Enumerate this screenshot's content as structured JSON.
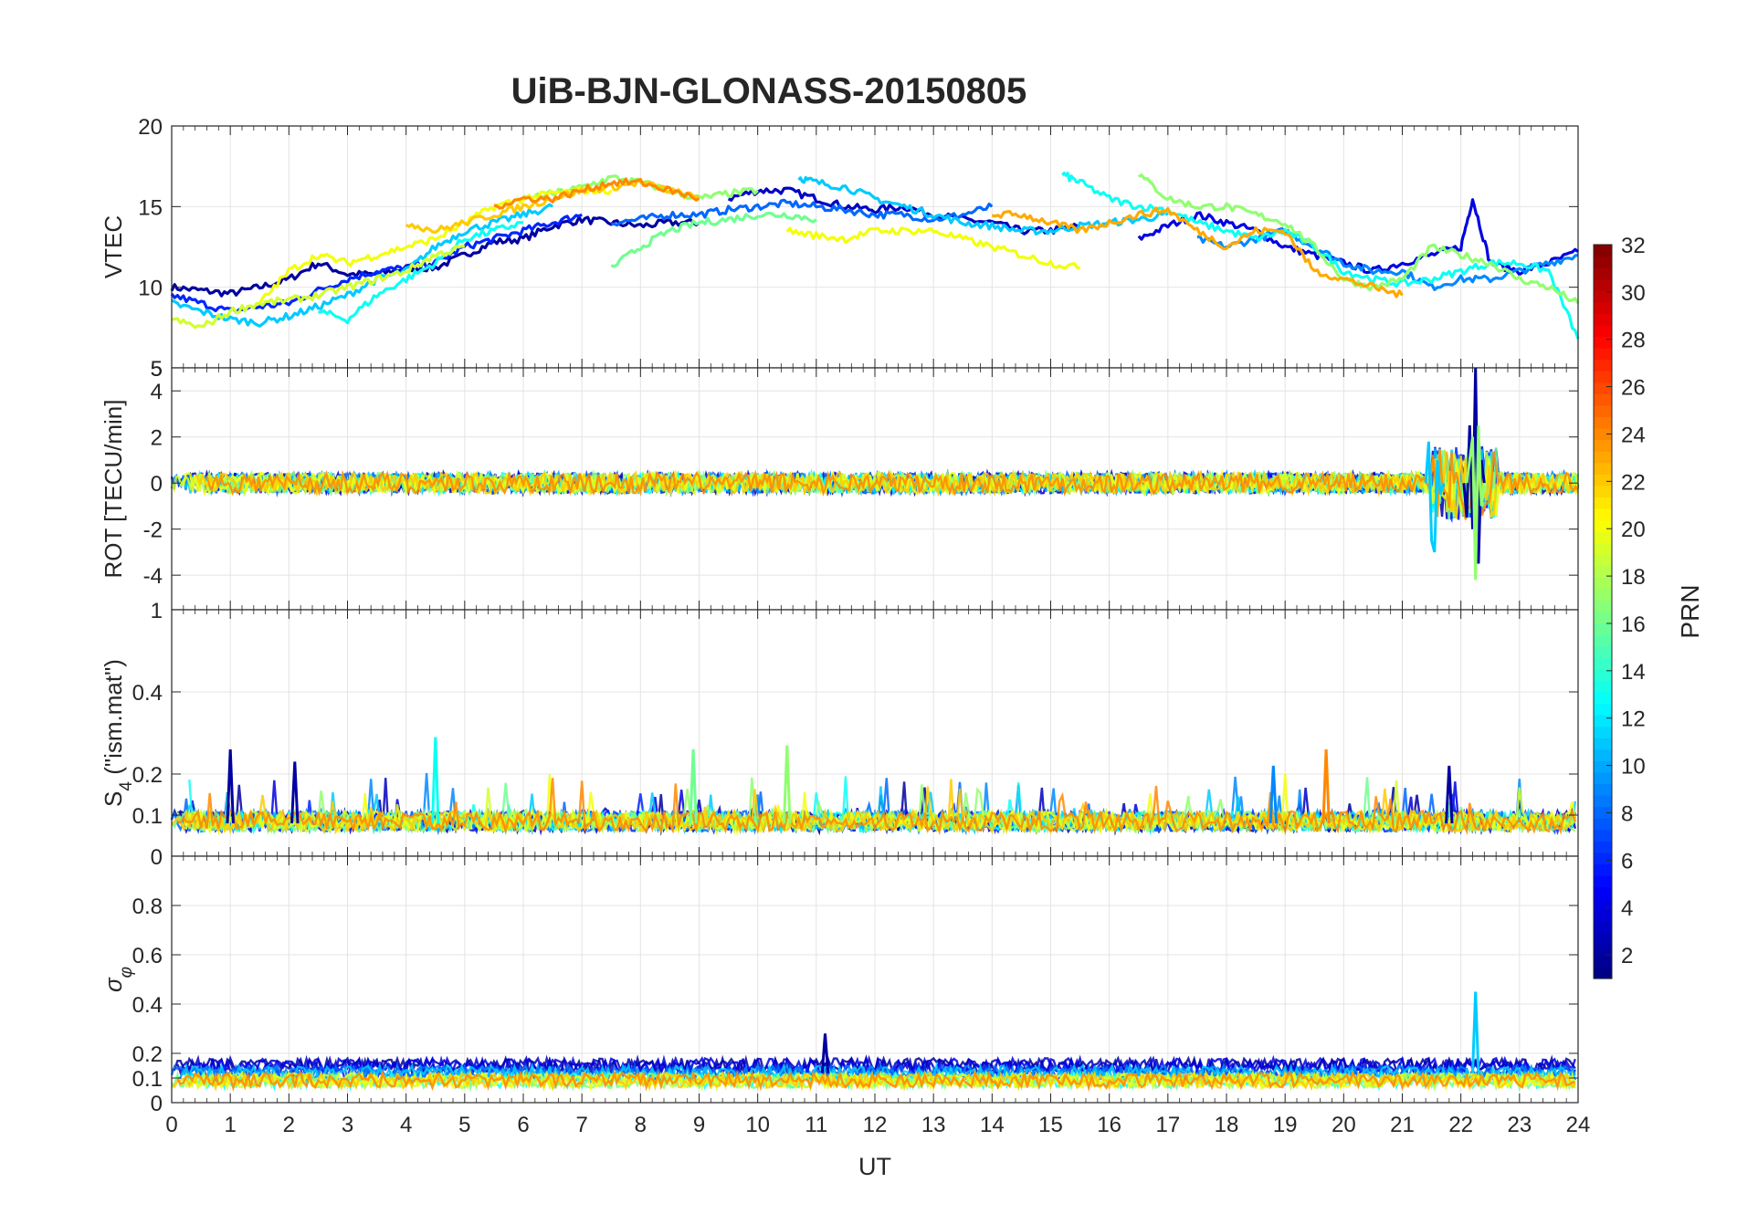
{
  "chart_data": {
    "type": "line",
    "title": "UiB-BJN-GLONASS-20150805",
    "xlabel": "UT",
    "xlim": [
      0,
      24
    ],
    "xticks": [
      "0",
      "1",
      "2",
      "3",
      "4",
      "5",
      "6",
      "7",
      "8",
      "9",
      "10",
      "11",
      "12",
      "13",
      "14",
      "15",
      "16",
      "17",
      "18",
      "19",
      "20",
      "21",
      "22",
      "23",
      "24"
    ],
    "grid": true,
    "panels": [
      {
        "id": "vtec",
        "ylabel": "VTEC",
        "ylim": [
          5,
          20
        ],
        "yticks": [
          5,
          10,
          15,
          20
        ],
        "ytick_labels": [
          "5",
          "10",
          "15",
          "20"
        ],
        "series": [
          {
            "name": "PRN 2",
            "prn": 2,
            "x": [
              0,
              0.5,
              1,
              1.5,
              2,
              2.5,
              3,
              3.5,
              4,
              4.5,
              5,
              5.5,
              6,
              6.5,
              7,
              7.5,
              8,
              8.5,
              9
            ],
            "y": [
              10,
              9.8,
              9.6,
              10,
              10.5,
              11.5,
              10.8,
              10.8,
              11.2,
              11.2,
              12,
              12.8,
              13,
              13.8,
              14.2,
              14,
              13.8,
              14,
              14
            ]
          },
          {
            "name": "PRN 3",
            "prn": 3,
            "x": [
              9.5,
              10,
              10.5,
              11,
              11.5,
              12,
              12.5,
              13,
              13.5,
              14,
              14.5,
              15,
              15.5
            ],
            "y": [
              15.5,
              16,
              16,
              15.5,
              15,
              14.8,
              15,
              14.5,
              14.2,
              14,
              13.5,
              13.5,
              13.8
            ]
          },
          {
            "name": "PRN 4",
            "prn": 4,
            "x": [
              16.5,
              17,
              17.5,
              18,
              18.5,
              19,
              19.5,
              20,
              20.5,
              21,
              21.5,
              22,
              22.2,
              22.5,
              23,
              23.5,
              24
            ],
            "y": [
              13,
              13.8,
              14.5,
              14,
              13.5,
              12.5,
              12,
              11.5,
              11,
              11.5,
              12,
              12.5,
              15.5,
              11.5,
              11,
              11.5,
              12.2
            ]
          },
          {
            "name": "PRN 6",
            "prn": 6,
            "x": [
              0,
              0.5,
              1,
              1.5,
              2,
              2.5,
              3,
              3.5,
              4,
              4.5,
              5,
              5.5,
              6,
              6.5,
              7
            ],
            "y": [
              9.5,
              9,
              8.5,
              8.8,
              9,
              9.8,
              10.5,
              11,
              11.2,
              11.5,
              12.5,
              13,
              13.5,
              14,
              14.5
            ]
          },
          {
            "name": "PRN 8",
            "prn": 8,
            "x": [
              7.5,
              8,
              8.5,
              9,
              9.5,
              10,
              10.5,
              11,
              11.5,
              12,
              12.5,
              13,
              13.5,
              14
            ],
            "y": [
              14,
              14.2,
              14.5,
              14.5,
              14.8,
              15,
              15.2,
              15,
              14.8,
              14.5,
              14.5,
              14.2,
              14.5,
              15
            ]
          },
          {
            "name": "PRN 9",
            "prn": 9,
            "x": [
              17.5,
              18,
              18.5,
              19,
              19.5,
              20,
              20.5,
              21,
              21.5,
              22,
              22.5,
              23,
              23.5,
              24
            ],
            "y": [
              13,
              12.5,
              13,
              13.5,
              12.5,
              11.5,
              11,
              11,
              10,
              10.5,
              10.5,
              11,
              11.5,
              12
            ]
          },
          {
            "name": "PRN 11",
            "prn": 11,
            "x": [
              10.7,
              11,
              11.5,
              12,
              12.5,
              13,
              13.5,
              14,
              14.5,
              15,
              15.5,
              16,
              16.5,
              17
            ],
            "y": [
              16.8,
              16.5,
              16.2,
              15.5,
              15,
              14.5,
              14,
              13.8,
              13.5,
              13.5,
              13.8,
              14,
              14.2,
              14.5
            ]
          },
          {
            "name": "PRN 11b",
            "prn": 11,
            "x": [
              0,
              0.5,
              1,
              1.5,
              2,
              2.5,
              3,
              3.5,
              4,
              4.5,
              5,
              5.5,
              6,
              6.5
            ],
            "y": [
              9,
              8.5,
              8,
              7.8,
              8.2,
              8.8,
              9.5,
              10.5,
              11,
              12.5,
              13.5,
              14,
              14.5,
              15
            ]
          },
          {
            "name": "PRN 13",
            "prn": 13,
            "x": [
              2.5,
              3,
              3.5,
              4,
              4.5,
              5,
              5.5,
              6
            ],
            "y": [
              8.5,
              8,
              9.5,
              10.5,
              11.5,
              13,
              13.5,
              14
            ]
          },
          {
            "name": "PRN 13b",
            "prn": 13,
            "x": [
              15.2,
              15.5,
              16,
              16.5,
              17,
              17.5,
              18,
              18.5,
              19,
              19.5,
              20,
              20.5,
              21,
              21.5,
              22,
              22.5,
              23,
              23.5,
              24
            ],
            "y": [
              17,
              16.5,
              15.5,
              15,
              14.8,
              14,
              13.5,
              13,
              13.5,
              12.5,
              11,
              10.5,
              10.2,
              10.5,
              11,
              11.5,
              11.5,
              11,
              6.8
            ]
          },
          {
            "name": "PRN 16",
            "prn": 16,
            "x": [
              7.5,
              8,
              8.5,
              9,
              9.5,
              10,
              10.5,
              11
            ],
            "y": [
              11.2,
              12.5,
              13.5,
              14,
              14.2,
              14.5,
              14.5,
              14.2
            ]
          },
          {
            "name": "PRN 17",
            "prn": 17,
            "x": [
              16.5,
              17,
              17.5,
              18,
              18.5,
              19,
              19.5,
              20,
              20.5,
              21,
              21.5,
              22,
              22.5,
              23,
              23.5,
              24
            ],
            "y": [
              17,
              15.5,
              15,
              15,
              14.5,
              14,
              12.5,
              10.5,
              10,
              10.5,
              12.5,
              12,
              11.5,
              10.5,
              10,
              9
            ]
          },
          {
            "name": "PRN 17b",
            "prn": 17,
            "x": [
              6,
              6.5,
              7,
              7.5,
              8,
              8.5,
              9,
              9.5,
              10
            ],
            "y": [
              15.5,
              15.8,
              16.2,
              16.8,
              16.5,
              16,
              15.5,
              15.8,
              16
            ]
          },
          {
            "name": "PRN 19",
            "prn": 19,
            "x": [
              0,
              0.5,
              1,
              1.5,
              2,
              2.5,
              3,
              3.5,
              4,
              4.5,
              5
            ],
            "y": [
              8,
              7.5,
              8.5,
              9,
              9.2,
              9.5,
              10,
              10.5,
              11,
              12,
              12.5
            ]
          },
          {
            "name": "PRN 20",
            "prn": 20,
            "x": [
              1.5,
              2,
              2.5,
              3,
              3.5,
              4,
              4.5,
              5,
              5.5,
              6,
              6.5,
              7,
              7.5
            ],
            "y": [
              9,
              11,
              12,
              11.5,
              12,
              12.5,
              13,
              14,
              15,
              15.5,
              15.8,
              16,
              16
            ]
          },
          {
            "name": "PRN 20b",
            "prn": 20,
            "x": [
              10.5,
              11,
              11.5,
              12,
              12.5,
              13,
              13.5,
              14,
              14.5,
              15,
              15.5
            ],
            "y": [
              13.5,
              13.2,
              13,
              13.5,
              13.5,
              13.5,
              13,
              12.5,
              12,
              11.5,
              11.2
            ]
          },
          {
            "name": "PRN 22",
            "prn": 22,
            "x": [
              4,
              4.5,
              5,
              5.5,
              6,
              6.5,
              7,
              7.5,
              8,
              8.5,
              9
            ],
            "y": [
              14,
              13.5,
              14,
              14.5,
              15,
              15.5,
              16,
              16.2,
              16.5,
              16,
              15.5
            ]
          },
          {
            "name": "PRN 23",
            "prn": 23,
            "x": [
              14,
              14.5,
              15,
              15.5,
              16,
              16.5,
              17,
              17.5,
              18,
              18.5,
              19,
              19.5,
              20,
              20.5,
              21
            ],
            "y": [
              14.5,
              14.5,
              14,
              13.5,
              14,
              14.5,
              14.8,
              13.5,
              12.5,
              13.5,
              13.5,
              11,
              10.5,
              10,
              9.5
            ]
          },
          {
            "name": "PRN 24",
            "prn": 24,
            "x": [
              5.5,
              6,
              6.5,
              7,
              7.5,
              8,
              8.5,
              9
            ],
            "y": [
              15,
              15.5,
              15.5,
              16,
              16.5,
              16.5,
              16,
              15.5
            ]
          }
        ]
      },
      {
        "id": "rot",
        "ylabel": "ROT [TECU/min]",
        "ylim": [
          -5.5,
          5
        ],
        "yticks": [
          -4,
          -2,
          0,
          2,
          4
        ],
        "ytick_labels": [
          "-4",
          "-2",
          "0",
          "2",
          "4"
        ],
        "extra_top_label": "5",
        "series": [
          {
            "name": "spike PRN 2",
            "prn": 2,
            "x": [
              22.05,
              22.1,
              22.15,
              22.2,
              22.25,
              22.3,
              22.35,
              22.4
            ],
            "y": [
              0,
              -1.5,
              2.5,
              -2,
              5,
              -3.5,
              1,
              0
            ]
          },
          {
            "name": "spike PRN 11",
            "prn": 11,
            "x": [
              21.4,
              21.45,
              21.5,
              21.55,
              21.6,
              21.65,
              21.7
            ],
            "y": [
              0,
              1.8,
              -2.5,
              -3,
              1,
              -0.5,
              0
            ]
          },
          {
            "name": "spike PRN 17",
            "prn": 17,
            "x": [
              22.1,
              22.2,
              22.25,
              22.3,
              22.35,
              22.4
            ],
            "y": [
              0,
              2,
              -4.2,
              2.5,
              -1,
              0
            ]
          }
        ]
      },
      {
        "id": "s4",
        "ylabel": "S4 (\"ism.mat\")",
        "ylabel_main": "S",
        "ylabel_sub": "4",
        "ylabel_rest": " (\"ism.mat\")",
        "ylim": [
          0,
          0.6
        ],
        "yticks": [
          0,
          0.1,
          0.2,
          0.4
        ],
        "ytick_labels": [
          "0",
          "0.1",
          "0.2",
          "0.4"
        ],
        "extra_top_label": "1",
        "peaks": [
          {
            "prn": 2,
            "x": 1.0,
            "y": 0.26
          },
          {
            "prn": 2,
            "x": 2.1,
            "y": 0.23
          },
          {
            "prn": 13,
            "x": 4.5,
            "y": 0.29
          },
          {
            "prn": 16,
            "x": 8.9,
            "y": 0.26
          },
          {
            "prn": 17,
            "x": 10.5,
            "y": 0.27
          },
          {
            "prn": 24,
            "x": 19.7,
            "y": 0.26
          },
          {
            "prn": 2,
            "x": 21.8,
            "y": 0.22
          },
          {
            "prn": 9,
            "x": 18.8,
            "y": 0.22
          }
        ]
      },
      {
        "id": "sigma",
        "ylabel": "σφ",
        "ylabel_main": "σ",
        "ylabel_sub": "φ",
        "ylim": [
          0,
          1
        ],
        "yticks": [
          0,
          0.1,
          0.2,
          0.4,
          0.6,
          0.8
        ],
        "ytick_labels": [
          "0",
          "0.1",
          "0.2",
          "0.4",
          "0.6",
          "0.8"
        ],
        "peaks": [
          {
            "prn": 11,
            "x": 22.25,
            "y": 0.45
          },
          {
            "prn": 2,
            "x": 11.15,
            "y": 0.28
          }
        ]
      }
    ],
    "colorbar": {
      "label": "PRN",
      "range": [
        1,
        32
      ],
      "ticks": [
        2,
        4,
        6,
        8,
        10,
        12,
        14,
        16,
        18,
        20,
        22,
        24,
        26,
        28,
        30,
        32
      ],
      "tick_labels": [
        "2",
        "4",
        "6",
        "8",
        "10",
        "12",
        "14",
        "16",
        "18",
        "20",
        "22",
        "24",
        "26",
        "28",
        "30",
        "32"
      ],
      "colormap": "jet"
    }
  }
}
